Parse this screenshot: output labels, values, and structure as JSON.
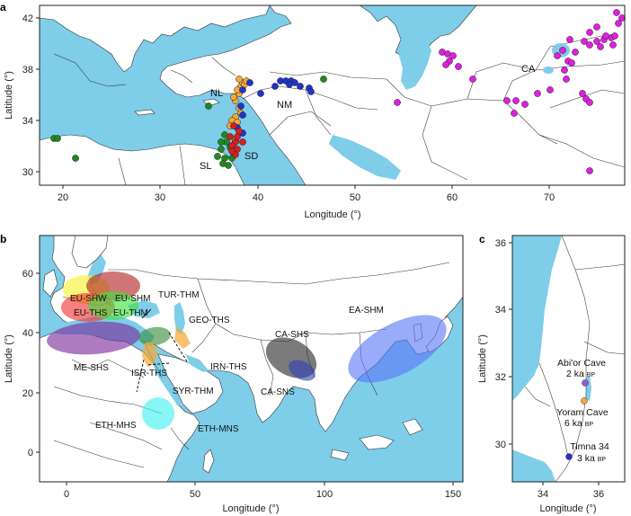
{
  "panels": {
    "a": {
      "letter": "a",
      "xlabel": "Longitude (°)",
      "ylabel": "Latitude (°)",
      "xticks": [
        "20",
        "30",
        "40",
        "50",
        "60",
        "70"
      ],
      "yticks": [
        "42",
        "38",
        "34",
        "30"
      ],
      "region_labels": [
        "NL",
        "NM",
        "CA",
        "SL",
        "SD"
      ]
    },
    "b": {
      "letter": "b",
      "xlabel": "Longitude (°)",
      "ylabel": "Latitude (°)",
      "xticks": [
        "0",
        "50",
        "100",
        "150"
      ],
      "yticks": [
        "60",
        "40",
        "20",
        "0"
      ],
      "zone_labels": [
        "EU-SHW",
        "EU-SHM",
        "EU-THS",
        "EU-THM",
        "TUR-THM",
        "GEO-THS",
        "CA-SHS",
        "EA-SHM",
        "ME-SHS",
        "IRN-THS",
        "ISR-THS",
        "SYR-THM",
        "CA-SNS",
        "ETH-MHS",
        "ETH-MNS"
      ]
    },
    "c": {
      "letter": "c",
      "xlabel": "Longitude (°)",
      "ylabel": "Latitude (°)",
      "xticks": [
        "34",
        "36"
      ],
      "yticks": [
        "36",
        "34",
        "32",
        "30"
      ],
      "sites": [
        {
          "name": "Abi'or Cave",
          "age": "2 ka",
          "unit": "BP",
          "color": "#9b59d0"
        },
        {
          "name": "Yoram Cave",
          "age": "6 ka",
          "unit": "BP",
          "color": "#f3a93b"
        },
        {
          "name": "Timna 34",
          "age": "3 ka",
          "unit": "BP",
          "color": "#2233cc"
        }
      ]
    }
  },
  "colors": {
    "sea": "#7ecde9",
    "nl": "#f4a93a",
    "nm": "#1f35c9",
    "sl": "#1d8a1d",
    "sd": "#d42020",
    "ca": "#e01ee0"
  },
  "zone_colors": {
    "EU-SHW": "#f4f22a",
    "EU-SHM": "#b22323",
    "EU-THS": "#f03030",
    "EU-THM": "#3ee03e",
    "ME-SHS": "#7a2a9a",
    "CA-SHS": "#2a2a2a",
    "CA-SNS": "#3040b0",
    "EA-SHM": "#5a78f5",
    "ETH-MNS": "#40f0f0",
    "GEO-THS": "#3a8a3a",
    "ISR-THS": "#f4a93a"
  }
}
